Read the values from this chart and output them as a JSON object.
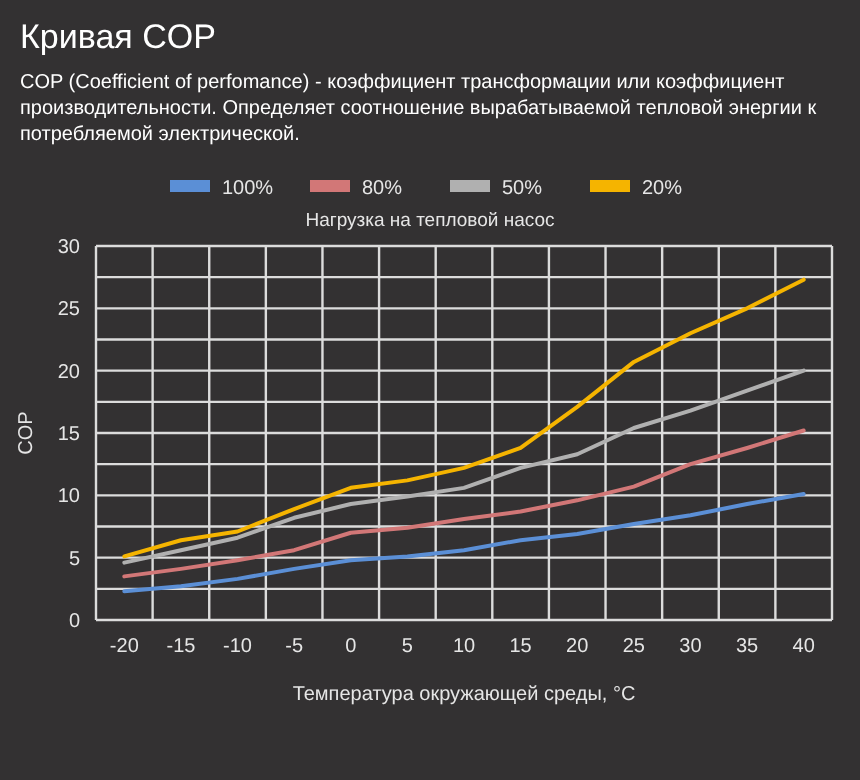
{
  "chart_data": {
    "type": "line",
    "title": "Кривая COP",
    "subtitle": "COP (Coefficient of perfomance) - коэффициент трансформации или коэффициент производительности. Определяет соотношение вырабатываемой тепловой энергии к потребляемой электрической.",
    "legend_title": "Нагрузка на тепловой насос",
    "xlabel": "Температура окружающей среды, °C",
    "ylabel": "COP",
    "categories": [
      "-20",
      "-15",
      "-10",
      "-5",
      "0",
      "5",
      "10",
      "15",
      "20",
      "25",
      "30",
      "35",
      "40"
    ],
    "series": [
      {
        "name": "100%",
        "color": "#5b8fd6",
        "values": [
          2.3,
          2.7,
          3.3,
          4.1,
          4.8,
          5.1,
          5.6,
          6.4,
          6.9,
          7.7,
          8.4,
          9.3,
          10.1
        ]
      },
      {
        "name": "80%",
        "color": "#d27777",
        "values": [
          3.5,
          4.1,
          4.8,
          5.6,
          7,
          7.4,
          8.1,
          8.7,
          9.6,
          10.7,
          12.5,
          13.8,
          15.2
        ]
      },
      {
        "name": "50%",
        "color": "#b0b0b0",
        "values": [
          4.6,
          5.6,
          6.6,
          8.2,
          9.3,
          9.9,
          10.6,
          12.2,
          13.3,
          15.4,
          16.8,
          18.4,
          20
        ]
      },
      {
        "name": "20%",
        "color": "#f5b400",
        "values": [
          5.1,
          6.4,
          7.1,
          8.9,
          10.6,
          11.2,
          12.2,
          13.8,
          17.1,
          20.7,
          23,
          25,
          27.3
        ]
      }
    ],
    "ylim": [
      0,
      30
    ],
    "yticks": [
      0,
      {
        "value": 2.5,
        "label": null
      },
      5,
      {
        "value": 7.5,
        "label": null
      },
      10,
      {
        "value": 12.5,
        "label": null
      },
      15,
      {
        "value": 17.5,
        "label": null
      },
      20,
      {
        "value": 22.5,
        "label": null
      },
      25,
      {
        "value": 27.5,
        "label": null
      },
      30
    ],
    "grid": true,
    "legend": "top",
    "marker": "none",
    "line_style": "solid"
  }
}
